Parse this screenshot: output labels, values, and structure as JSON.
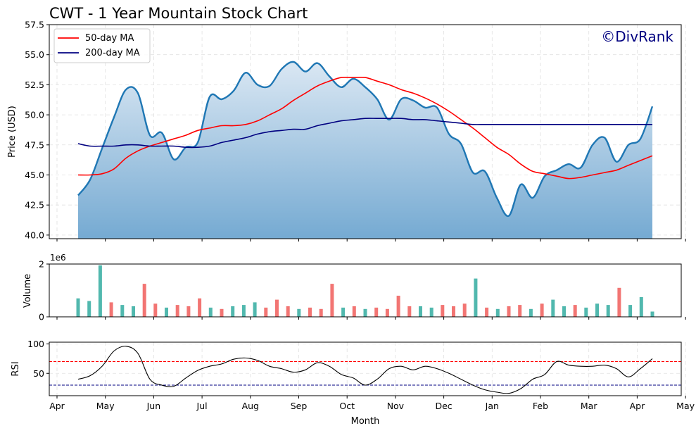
{
  "chart_data": [
    {
      "type": "area",
      "title": "CWT - 1 Year Mountain Stock Chart",
      "watermark": "©DivRank",
      "xlabel": "",
      "ylabel": "Price (USD)",
      "ylim": [
        39.7,
        57.5
      ],
      "yticks": [
        "40.0",
        "42.5",
        "45.0",
        "47.5",
        "50.0",
        "52.5",
        "55.0",
        "57.5"
      ],
      "legend": {
        "position": "top-left",
        "entries": [
          "50-day MA",
          "200-day MA"
        ]
      },
      "grid": true,
      "colors": {
        "price": "#1f77b4",
        "fill_top": "#dae7f3",
        "fill_bottom": "#75aad2",
        "ma50": "#ff0000",
        "ma200": "#000080"
      },
      "x": [
        "Apr 16",
        "Apr 22",
        "May 1",
        "May 8",
        "May 15",
        "May 22",
        "Jun 1",
        "Jun 8",
        "Jun 15",
        "Jun 22",
        "Jul 1",
        "Jul 8",
        "Jul 15",
        "Jul 22",
        "Aug 1",
        "Aug 8",
        "Aug 15",
        "Aug 22",
        "Sep 1",
        "Sep 8",
        "Sep 15",
        "Sep 22",
        "Oct 1",
        "Oct 8",
        "Oct 15",
        "Oct 22",
        "Nov 1",
        "Nov 8",
        "Nov 15",
        "Nov 22",
        "Dec 1",
        "Dec 8",
        "Dec 15",
        "Dec 22",
        "Jan 1",
        "Jan 8",
        "Jan 15",
        "Jan 22",
        "Feb 1",
        "Feb 8",
        "Feb 15",
        "Feb 22",
        "Mar 1",
        "Mar 8",
        "Mar 15",
        "Mar 22",
        "Apr 1",
        "Apr 8",
        "Apr 15"
      ],
      "series": [
        {
          "name": "Price",
          "values": [
            43.3,
            44.6,
            47.2,
            49.8,
            52.1,
            51.8,
            48.3,
            48.5,
            46.3,
            47.3,
            47.7,
            51.5,
            51.3,
            52.0,
            53.5,
            52.5,
            52.4,
            53.8,
            54.4,
            53.6,
            54.3,
            53.2,
            52.3,
            53.0,
            52.3,
            51.3,
            49.6,
            51.3,
            51.2,
            50.6,
            50.6,
            48.4,
            47.6,
            45.2,
            45.3,
            43.1,
            41.6,
            44.2,
            43.1,
            44.9,
            45.4,
            45.9,
            45.6,
            47.5,
            48.1,
            46.1,
            47.5,
            48.0,
            50.7
          ]
        },
        {
          "name": "50-day MA",
          "values": [
            45.0,
            45.0,
            45.1,
            45.5,
            46.4,
            47.0,
            47.4,
            47.7,
            48.0,
            48.3,
            48.7,
            48.9,
            49.1,
            49.1,
            49.2,
            49.5,
            50.0,
            50.5,
            51.2,
            51.8,
            52.4,
            52.8,
            53.1,
            53.1,
            53.1,
            52.8,
            52.5,
            52.1,
            51.8,
            51.4,
            50.9,
            50.3,
            49.6,
            48.9,
            48.1,
            47.3,
            46.7,
            45.9,
            45.3,
            45.1,
            44.9,
            44.7,
            44.8,
            45.0,
            45.2,
            45.4,
            45.8,
            46.2,
            46.6
          ]
        },
        {
          "name": "200-day MA",
          "values": [
            47.6,
            47.4,
            47.4,
            47.4,
            47.5,
            47.5,
            47.4,
            47.4,
            47.4,
            47.3,
            47.3,
            47.4,
            47.7,
            47.9,
            48.1,
            48.4,
            48.6,
            48.7,
            48.8,
            48.8,
            49.1,
            49.3,
            49.5,
            49.6,
            49.7,
            49.7,
            49.7,
            49.7,
            49.6,
            49.6,
            49.5,
            49.4,
            49.3,
            49.2,
            49.2,
            49.2,
            49.2,
            49.2,
            49.2,
            49.2,
            49.2,
            49.2,
            49.2,
            49.2,
            49.2,
            49.2,
            49.2,
            49.2,
            49.2
          ]
        }
      ]
    },
    {
      "type": "bar",
      "xlabel": "",
      "ylabel": "Volume",
      "offset_label": "1e6",
      "ylim": [
        0,
        2000000
      ],
      "yticks": [
        "0",
        "2"
      ],
      "colors": {
        "up": "#26a69a",
        "down": "#ef5350"
      },
      "x": [
        "Apr 18",
        "Apr 25",
        "May 1",
        "May 8",
        "May 15",
        "May 22",
        "May 29",
        "Jun 5",
        "Jun 12",
        "Jun 19",
        "Jun 26",
        "Jul 3",
        "Jul 10",
        "Jul 17",
        "Jul 24",
        "Jul 31",
        "Aug 7",
        "Aug 14",
        "Aug 21",
        "Aug 28",
        "Sep 4",
        "Sep 11",
        "Sep 18",
        "Sep 25",
        "Oct 2",
        "Oct 9",
        "Oct 16",
        "Oct 23",
        "Oct 30",
        "Nov 6",
        "Nov 13",
        "Nov 20",
        "Nov 27",
        "Dec 4",
        "Dec 11",
        "Dec 18",
        "Dec 25",
        "Jan 1",
        "Jan 8",
        "Jan 15",
        "Jan 22",
        "Jan 29",
        "Feb 5",
        "Feb 12",
        "Feb 19",
        "Feb 26",
        "Mar 5",
        "Mar 12",
        "Mar 19",
        "Mar 26",
        "Apr 2",
        "Apr 9",
        "Apr 15"
      ],
      "values": [
        700000,
        600000,
        1950000,
        550000,
        450000,
        400000,
        1250000,
        500000,
        350000,
        450000,
        400000,
        700000,
        350000,
        300000,
        400000,
        450000,
        550000,
        350000,
        650000,
        400000,
        300000,
        350000,
        300000,
        1250000,
        350000,
        400000,
        300000,
        350000,
        300000,
        800000,
        400000,
        400000,
        350000,
        450000,
        400000,
        500000,
        1450000,
        350000,
        300000,
        400000,
        450000,
        300000,
        500000,
        650000,
        400000,
        450000,
        350000,
        500000,
        450000,
        1100000,
        450000,
        750000,
        200000
      ],
      "direction": [
        "up",
        "up",
        "up",
        "down",
        "up",
        "up",
        "down",
        "down",
        "up",
        "down",
        "down",
        "down",
        "up",
        "down",
        "up",
        "up",
        "up",
        "down",
        "down",
        "down",
        "up",
        "down",
        "down",
        "down",
        "up",
        "down",
        "up",
        "down",
        "down",
        "down",
        "down",
        "up",
        "up",
        "down",
        "down",
        "down",
        "up",
        "down",
        "up",
        "down",
        "down",
        "up",
        "down",
        "up",
        "up",
        "down",
        "up",
        "up",
        "up",
        "down",
        "up",
        "up",
        "up"
      ]
    },
    {
      "type": "line",
      "xlabel": "Month",
      "ylabel": "RSI",
      "ylim": [
        12,
        103
      ],
      "yticks": [
        "50",
        "100"
      ],
      "xticks": [
        "Apr",
        "May",
        "Jun",
        "Jul",
        "Aug",
        "Sep",
        "Oct",
        "Nov",
        "Dec",
        "Jan",
        "Feb",
        "Mar",
        "Apr",
        "May"
      ],
      "thresholds": {
        "overbought": 70,
        "oversold": 30
      },
      "colors": {
        "line": "#000000",
        "overbought": "#ff0000",
        "oversold": "#000080"
      },
      "x": [
        "Apr 16",
        "Apr 22",
        "May 1",
        "May 8",
        "May 15",
        "May 22",
        "Jun 1",
        "Jun 8",
        "Jun 15",
        "Jun 22",
        "Jul 1",
        "Jul 8",
        "Jul 15",
        "Jul 22",
        "Aug 1",
        "Aug 8",
        "Aug 15",
        "Aug 22",
        "Sep 1",
        "Sep 8",
        "Sep 15",
        "Sep 22",
        "Oct 1",
        "Oct 8",
        "Oct 15",
        "Oct 22",
        "Nov 1",
        "Nov 8",
        "Nov 15",
        "Nov 22",
        "Dec 1",
        "Dec 8",
        "Dec 15",
        "Dec 22",
        "Jan 1",
        "Jan 8",
        "Jan 15",
        "Jan 22",
        "Feb 1",
        "Feb 8",
        "Feb 15",
        "Feb 22",
        "Mar 1",
        "Mar 8",
        "Mar 15",
        "Mar 22",
        "Apr 1",
        "Apr 8",
        "Apr 15"
      ],
      "values": [
        40,
        46,
        62,
        88,
        96,
        84,
        40,
        30,
        28,
        42,
        55,
        62,
        66,
        74,
        76,
        72,
        62,
        58,
        52,
        56,
        68,
        62,
        48,
        42,
        30,
        40,
        58,
        62,
        56,
        62,
        58,
        50,
        40,
        30,
        22,
        18,
        16,
        24,
        40,
        48,
        70,
        64,
        62,
        62,
        64,
        58,
        44,
        58,
        75
      ]
    }
  ]
}
